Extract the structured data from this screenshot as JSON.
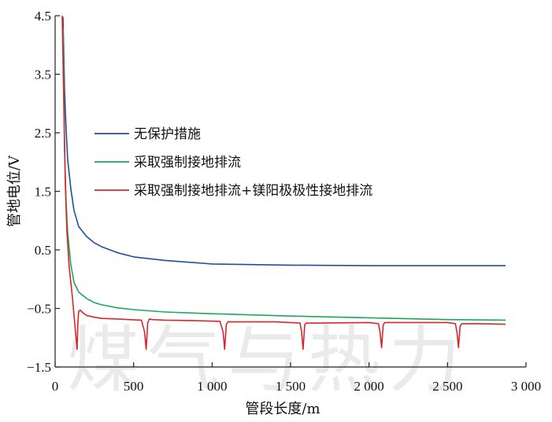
{
  "chart_data": {
    "type": "line",
    "xlabel": "管段长度/m",
    "ylabel": "管地电位/V",
    "xlim": [
      0,
      3000
    ],
    "ylim": [
      -1.5,
      4.5
    ],
    "x_ticks": [
      0,
      500,
      1000,
      1500,
      2000,
      2500,
      3000
    ],
    "x_tick_labels": [
      "0",
      "500",
      "1 000",
      "1 500",
      "2 000",
      "2 500",
      "3 000"
    ],
    "y_ticks": [
      -1.5,
      -0.5,
      0.5,
      1.5,
      2.5,
      3.5,
      4.5
    ],
    "y_tick_labels": [
      "−1.5",
      "−0.5",
      "0.5",
      "1.5",
      "2.5",
      "3.5",
      "4.5"
    ],
    "grid": false,
    "legend_position": "middle-left",
    "watermark": "煤气与热力",
    "series": [
      {
        "name": "无保护措施",
        "color": "#1f4e9a",
        "x": [
          50,
          60,
          70,
          80,
          100,
          120,
          150,
          200,
          250,
          300,
          400,
          500,
          700,
          1000,
          1500,
          2000,
          2500,
          2870
        ],
        "y": [
          4.48,
          3.2,
          2.55,
          2.05,
          1.55,
          1.18,
          0.9,
          0.73,
          0.62,
          0.55,
          0.45,
          0.38,
          0.32,
          0.26,
          0.24,
          0.23,
          0.23,
          0.23
        ]
      },
      {
        "name": "采取强制接地排流",
        "color": "#1aa85a",
        "x": [
          50,
          60,
          70,
          80,
          100,
          120,
          150,
          200,
          250,
          300,
          400,
          500,
          700,
          1000,
          1500,
          2000,
          2500,
          2870
        ],
        "y": [
          4.3,
          2.2,
          1.3,
          0.8,
          0.25,
          -0.05,
          -0.22,
          -0.33,
          -0.4,
          -0.44,
          -0.49,
          -0.52,
          -0.56,
          -0.59,
          -0.63,
          -0.66,
          -0.69,
          -0.7
        ]
      },
      {
        "name": "采取强制接地排流+镁阳极极性接地排流",
        "color": "#d9262b",
        "x": [
          45,
          55,
          65,
          75,
          90,
          100,
          110,
          120,
          130,
          140,
          145,
          150,
          160,
          180,
          200,
          250,
          300,
          400,
          550,
          570,
          580,
          590,
          600,
          620,
          700,
          900,
          1050,
          1070,
          1080,
          1090,
          1100,
          1120,
          1200,
          1400,
          1560,
          1570,
          1580,
          1590,
          1600,
          1700,
          2000,
          2060,
          2070,
          2080,
          2090,
          2100,
          2200,
          2500,
          2550,
          2560,
          2570,
          2580,
          2590,
          2600,
          2700,
          2870
        ],
        "y": [
          4.5,
          3.0,
          1.6,
          0.8,
          0.2,
          -0.05,
          -0.3,
          -0.6,
          -0.9,
          -1.2,
          -0.75,
          -0.55,
          -0.53,
          -0.58,
          -0.62,
          -0.65,
          -0.67,
          -0.68,
          -0.7,
          -0.9,
          -1.2,
          -0.75,
          -0.68,
          -0.69,
          -0.7,
          -0.71,
          -0.72,
          -0.9,
          -1.2,
          -0.78,
          -0.73,
          -0.73,
          -0.73,
          -0.73,
          -0.75,
          -0.9,
          -1.2,
          -0.78,
          -0.75,
          -0.75,
          -0.74,
          -0.76,
          -0.9,
          -1.17,
          -0.78,
          -0.74,
          -0.74,
          -0.74,
          -0.76,
          -0.9,
          -1.17,
          -0.8,
          -0.76,
          -0.76,
          -0.76,
          -0.77
        ]
      }
    ]
  }
}
